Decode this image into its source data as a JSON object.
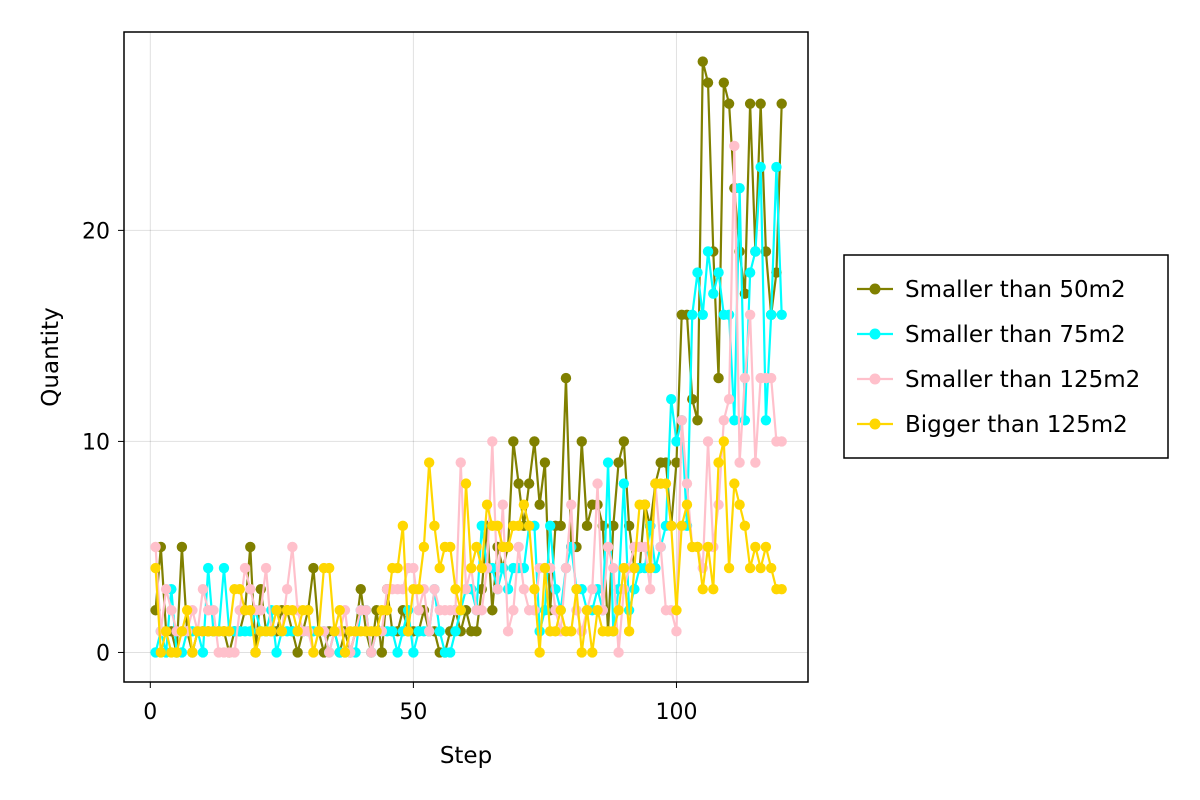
{
  "chart_data": {
    "type": "line",
    "xlabel": "Step",
    "ylabel": "Quantity",
    "xlim": [
      -5,
      125
    ],
    "ylim": [
      -1.4,
      29.4
    ],
    "xticks": [
      0,
      50,
      100
    ],
    "yticks": [
      0,
      10,
      20
    ],
    "grid": true,
    "legend_position": "right",
    "x_start": 1,
    "series": [
      {
        "name": "Smaller than 50m2",
        "color": "#808000",
        "values": [
          2,
          5,
          1,
          1,
          0,
          5,
          1,
          0,
          1,
          1,
          1,
          1,
          1,
          1,
          0,
          1,
          1,
          2,
          5,
          0,
          3,
          1,
          1,
          1,
          2,
          2,
          1,
          0,
          1,
          2,
          4,
          1,
          0,
          1,
          1,
          0,
          1,
          0,
          1,
          3,
          1,
          0,
          2,
          0,
          3,
          1,
          1,
          2,
          1,
          1,
          1,
          2,
          1,
          1,
          0,
          0,
          1,
          2,
          1,
          2,
          1,
          1,
          3,
          6,
          2,
          5,
          4,
          5,
          10,
          8,
          6,
          8,
          10,
          7,
          9,
          2,
          6,
          6,
          13,
          5,
          5,
          10,
          6,
          7,
          7,
          6,
          1,
          6,
          9,
          10,
          6,
          4,
          4,
          7,
          6,
          8,
          9,
          9,
          6,
          9,
          16,
          16,
          12,
          11,
          28,
          27,
          19,
          13,
          27,
          26,
          22,
          19,
          17,
          26,
          19,
          26,
          19,
          16,
          18,
          26
        ]
      },
      {
        "name": "Smaller than 75m2",
        "color": "#00FFFF",
        "values": [
          0,
          1,
          0,
          3,
          0,
          0,
          1,
          1,
          1,
          0,
          4,
          1,
          1,
          4,
          1,
          1,
          1,
          1,
          1,
          2,
          1,
          1,
          2,
          0,
          1,
          1,
          1,
          1,
          1,
          1,
          1,
          1,
          1,
          0,
          1,
          0,
          0,
          0,
          0,
          2,
          2,
          0,
          1,
          1,
          1,
          1,
          0,
          1,
          2,
          0,
          1,
          1,
          1,
          3,
          1,
          0,
          0,
          1,
          2,
          3,
          3,
          2,
          6,
          4,
          4,
          3,
          4,
          3,
          4,
          4,
          4,
          6,
          6,
          1,
          2,
          6,
          3,
          2,
          4,
          5,
          3,
          3,
          2,
          2,
          3,
          2,
          9,
          1,
          3,
          8,
          2,
          3,
          4,
          4,
          6,
          4,
          5,
          6,
          12,
          10,
          11,
          6,
          16,
          18,
          16,
          19,
          17,
          18,
          16,
          16,
          11,
          22,
          11,
          18,
          19,
          23,
          11,
          16,
          23,
          16
        ]
      },
      {
        "name": "Smaller than 125m2",
        "color": "#FFC0CB",
        "values": [
          5,
          1,
          3,
          2,
          1,
          1,
          1,
          2,
          1,
          3,
          2,
          2,
          0,
          0,
          0,
          0,
          2,
          4,
          3,
          2,
          2,
          4,
          1,
          2,
          1,
          3,
          5,
          2,
          1,
          1,
          0,
          1,
          1,
          0,
          1,
          1,
          2,
          0,
          1,
          2,
          2,
          0,
          1,
          1,
          3,
          3,
          3,
          3,
          4,
          4,
          2,
          3,
          1,
          3,
          2,
          2,
          2,
          2,
          9,
          3,
          4,
          2,
          2,
          4,
          10,
          3,
          7,
          1,
          2,
          5,
          3,
          2,
          2,
          4,
          4,
          4,
          2,
          1,
          4,
          7,
          2,
          1,
          2,
          3,
          8,
          2,
          5,
          4,
          0,
          3,
          4,
          5,
          5,
          5,
          3,
          8,
          5,
          2,
          2,
          1,
          11,
          8,
          5,
          5,
          4,
          10,
          5,
          7,
          11,
          12,
          24,
          9,
          13,
          16,
          9,
          13,
          13,
          13,
          10,
          10
        ]
      },
      {
        "name": "Bigger than 125m2",
        "color": "#FFD700",
        "values": [
          4,
          0,
          1,
          0,
          0,
          1,
          2,
          0,
          1,
          1,
          1,
          1,
          1,
          1,
          1,
          3,
          3,
          2,
          2,
          0,
          1,
          1,
          1,
          2,
          1,
          2,
          2,
          1,
          2,
          2,
          0,
          1,
          4,
          4,
          1,
          2,
          0,
          1,
          1,
          1,
          1,
          1,
          1,
          2,
          2,
          4,
          4,
          6,
          1,
          3,
          3,
          5,
          9,
          6,
          4,
          5,
          5,
          3,
          2,
          8,
          4,
          5,
          4,
          7,
          6,
          6,
          5,
          5,
          6,
          6,
          7,
          6,
          3,
          0,
          4,
          1,
          1,
          2,
          1,
          1,
          3,
          0,
          2,
          0,
          2,
          1,
          1,
          1,
          2,
          4,
          1,
          4,
          7,
          7,
          4,
          8,
          8,
          8,
          6,
          2,
          6,
          7,
          5,
          5,
          3,
          5,
          3,
          9,
          10,
          4,
          8,
          7,
          6,
          4,
          5,
          4,
          5,
          4,
          3,
          3
        ]
      }
    ]
  }
}
